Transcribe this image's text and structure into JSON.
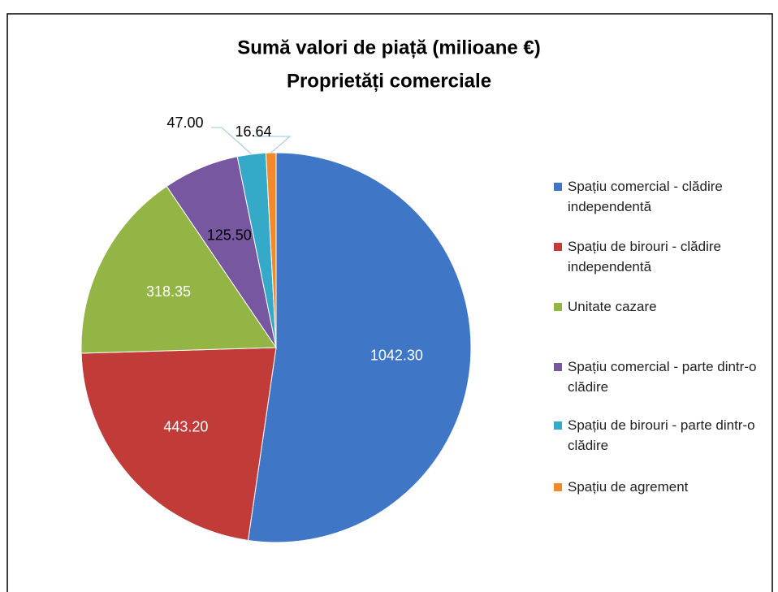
{
  "chart_data": {
    "type": "pie",
    "title": "Sumă valori de piață (milioane €)",
    "subtitle": "Proprietăți comerciale",
    "categories": [
      "Spațiu comercial - clădire independentă",
      "Spațiu de birouri - clădire independentă",
      "Unitate cazare",
      "Spațiu comercial - parte dintr-o clădire",
      "Spațiu de birouri - parte dintr-o clădire",
      "Spațiu de agrement"
    ],
    "values": [
      1042.3,
      443.2,
      318.35,
      125.5,
      47,
      16.64
    ],
    "value_labels": [
      "1042.30",
      "443.20",
      "318.35",
      "125.50",
      "47.00",
      "16.64"
    ],
    "colors": [
      "#3f77c6",
      "#c13b38",
      "#93b545",
      "#7757a0",
      "#35aac8",
      "#f08a2a"
    ],
    "label_colors": [
      "#ffffff",
      "#ffffff",
      "#ffffff",
      "#000000",
      "#000000",
      "#000000"
    ],
    "legend": "right"
  }
}
